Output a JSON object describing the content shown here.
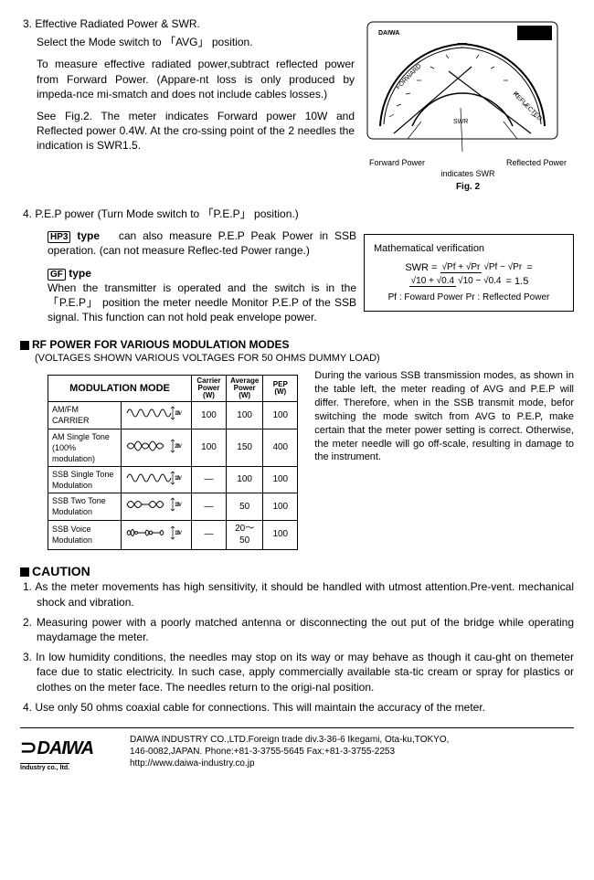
{
  "section3": {
    "num": "3.",
    "title": "Effective Radiated Power & SWR.",
    "p1": "Select the Mode switch to 「AVG」 position.",
    "p2": "To measure effective radiated power,subtract reflected power from Forward Power. (Appare-nt loss is only produced by impeda-nce mi-smatch and does not include cables losses.)",
    "p3": "See Fig.2. The meter indicates Forward power 10W and Reflected power 0.4W. At the cro-ssing point of the 2 needles the indication is SWR1.5."
  },
  "section4": {
    "num": "4.",
    "title": "P.E.P power (Turn Mode switch to 「P.E.P」 position.)",
    "hp3_label": "HP3",
    "hp3_type": "type",
    "hp3_text": "can also measure P.E.P Peak Power in SSB operation. (can not measure Reflec-ted Power range.)",
    "gf_label": "GF",
    "gf_type": "type",
    "gf_text": "When the transmitter is operated and the switch is in the 「P.E.P」 position the meter needle Monitor P.E.P of the SSB signal. This function can not hold peak envelope power."
  },
  "meter": {
    "forward_label": "Forward Power",
    "reflected_label": "Reflected Power",
    "swr_label": "indicates SWR",
    "fig": "Fig. 2",
    "brand": "DAIWA",
    "fwd_scale": "FORWARD",
    "ref_scale": "REFLECTED",
    "swr_text": "SWR"
  },
  "math": {
    "title": "Mathematical verification",
    "eq_left": "SWR =",
    "n1": "√Pf + √Pr",
    "d1": "√Pf − √Pr",
    "n2": "√10 + √0.4",
    "d2": "√10 − √0.4",
    "result": "= 1.5",
    "legend": "Pf : Foward Power    Pr : Reflected Power"
  },
  "rf": {
    "heading": "RF POWER FOR VARIOUS MODULATION MODES",
    "sub": "(VOLTAGES SHOWN VARIOUS VOLTAGES FOR 50 OHMS DUMMY LOAD)",
    "text": "During the various SSB transmission modes, as shown in the table left, the meter reading of AVG and P.E.P will differ. Therefore, when in the  SSB transmit mode, befor switching the mode switch from AVG to P.E.P, make certain  that the meter power setting is correct. Otherwise, the meter needle will go off-scale, resulting in damage to the instrument."
  },
  "table": {
    "h1": "MODULATION MODE",
    "h2": "Carrier Power (W)",
    "h3": "Average Power (W)",
    "h4": "PEP (W)",
    "rows": [
      {
        "mode": "AM/FM CARRIER",
        "wave": "sine",
        "vlabel": "100V",
        "c": "100",
        "a": "100",
        "p": "100"
      },
      {
        "mode": "AM Single Tone (100% modulation)",
        "wave": "am",
        "vlabel": "200V",
        "c": "100",
        "a": "150",
        "p": "400"
      },
      {
        "mode": "SSB Single Tone Modulation",
        "wave": "sine",
        "vlabel": "100V",
        "c": "—",
        "a": "100",
        "p": "100"
      },
      {
        "mode": "SSB Two Tone Modulation",
        "wave": "twotone",
        "vlabel": "100V",
        "c": "—",
        "a": "50",
        "p": "100"
      },
      {
        "mode": "SSB Voice Modulation",
        "wave": "voice",
        "vlabel": "100V",
        "c": "—",
        "a": "20～50",
        "p": "100"
      }
    ]
  },
  "caution": {
    "heading": "CAUTION",
    "items": [
      "As the meter movements has high sensitivity, it should be handled with utmost attention.Pre-vent.  mechanical shock and vibration.",
      "Measuring power with a poorly matched antenna or disconnecting the out put of the bridge while operating maydamage the meter.",
      "In low humidity conditions, the needles may stop on its way or may behave as though it cau-ght on themeter face due to static electricity.  In such case, apply commercially available sta-tic cream or spray for plastics or clothes on the meter face. The needles return to the origi-nal position.",
      "Use only 50 ohms coaxial cable for connections. This will maintain the accuracy of the meter."
    ]
  },
  "footer": {
    "logo": "DAIWA",
    "logo_sub": "Industry co., ltd.",
    "line1": "DAIWA INDUSTRY CO.,LTD.Foreign trade div.3-36-6 Ikegami, Ota-ku,TOKYO,",
    "line2": "146-0082,JAPAN.   Phone:+81-3-3755-5645    Fax:+81-3-3755-2253",
    "line3": "http://www.daiwa-industry.co.jp"
  },
  "colors": {
    "text": "#000000",
    "bg": "#ffffff"
  }
}
